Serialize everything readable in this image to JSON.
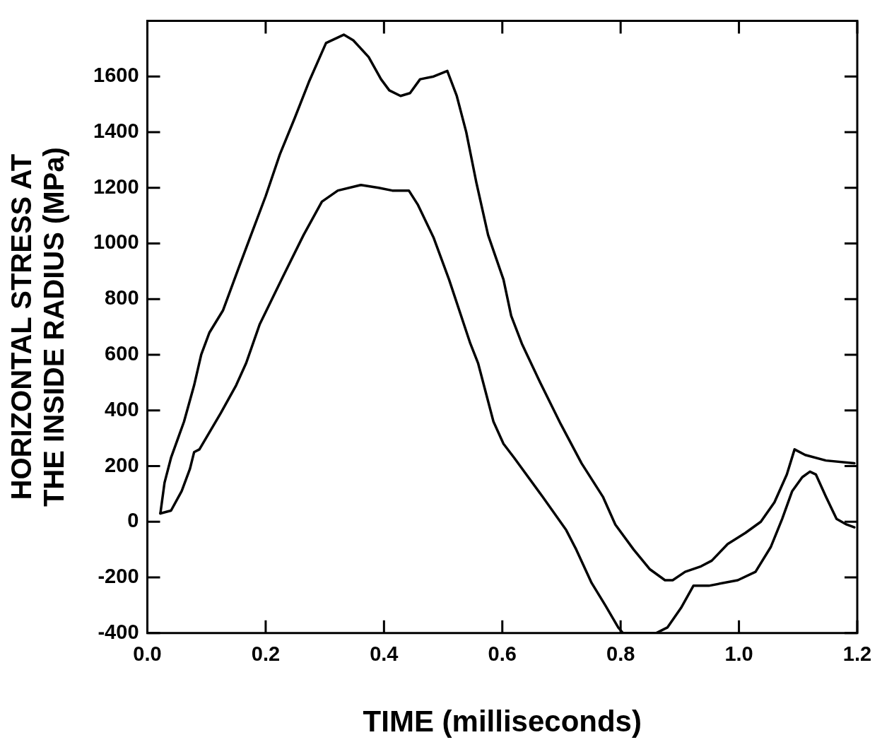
{
  "chart_data": {
    "type": "line",
    "xlabel": "TIME (milliseconds)",
    "ylabel": "HORIZONTAL STRESS AT\nTHE INSIDE RADIUS (MPa)",
    "xlim": [
      0,
      1.2
    ],
    "xticks": [
      {
        "value": 0,
        "label": "0.0"
      },
      0.2,
      0.4,
      0.6,
      0.8,
      {
        "value": 1,
        "label": "1.0"
      },
      1.2
    ],
    "ylim": [
      -400,
      1800
    ],
    "yticks": [
      -400,
      -200,
      0,
      200,
      400,
      600,
      800,
      1000,
      1200,
      1400,
      1600
    ],
    "grid": false,
    "legend": false,
    "marker": "none",
    "line_style": "solid",
    "series": [
      {
        "color": "#000000",
        "x": [
          0.022,
          0.029,
          0.04,
          0.062,
          0.079,
          0.091,
          0.105,
          0.128,
          0.154,
          0.177,
          0.2,
          0.224,
          0.249,
          0.273,
          0.302,
          0.332,
          0.348,
          0.374,
          0.395,
          0.409,
          0.428,
          0.444,
          0.461,
          0.484,
          0.507,
          0.523,
          0.539,
          0.556,
          0.576,
          0.602,
          0.615,
          0.633,
          0.664,
          0.699,
          0.734,
          0.77,
          0.791,
          0.822,
          0.849,
          0.875,
          0.888,
          0.909,
          0.936,
          0.954,
          0.981,
          1.011,
          1.037,
          1.06,
          1.081,
          1.094,
          1.112,
          1.147,
          1.195
        ],
        "values": [
          30,
          140,
          230,
          360,
          490,
          600,
          680,
          760,
          910,
          1040,
          1170,
          1320,
          1450,
          1580,
          1720,
          1750,
          1730,
          1670,
          1590,
          1550,
          1530,
          1540,
          1590,
          1600,
          1620,
          1530,
          1400,
          1220,
          1030,
          870,
          740,
          640,
          500,
          350,
          210,
          90,
          -10,
          -100,
          -170,
          -210,
          -210,
          -180,
          -160,
          -140,
          -80,
          -40,
          0,
          70,
          170,
          260,
          240,
          220,
          210
        ]
      },
      {
        "color": "#000000",
        "x": [
          0.022,
          0.04,
          0.058,
          0.072,
          0.079,
          0.088,
          0.124,
          0.15,
          0.167,
          0.19,
          0.229,
          0.264,
          0.295,
          0.322,
          0.361,
          0.391,
          0.414,
          0.442,
          0.457,
          0.484,
          0.51,
          0.546,
          0.559,
          0.585,
          0.602,
          0.62,
          0.668,
          0.708,
          0.725,
          0.751,
          0.774,
          0.796,
          0.804,
          0.83,
          0.86,
          0.879,
          0.902,
          0.923,
          0.949,
          0.998,
          1.028,
          1.054,
          1.073,
          1.09,
          1.107,
          1.12,
          1.13,
          1.147,
          1.165,
          1.182,
          1.195
        ],
        "values": [
          30,
          40,
          110,
          190,
          250,
          260,
          390,
          490,
          570,
          710,
          880,
          1030,
          1150,
          1190,
          1210,
          1200,
          1190,
          1190,
          1140,
          1020,
          870,
          640,
          570,
          360,
          280,
          230,
          90,
          -30,
          -100,
          -220,
          -300,
          -380,
          -400,
          -400,
          -400,
          -380,
          -310,
          -230,
          -230,
          -210,
          -180,
          -90,
          10,
          110,
          160,
          180,
          170,
          90,
          10,
          -10,
          -20
        ]
      }
    ]
  }
}
